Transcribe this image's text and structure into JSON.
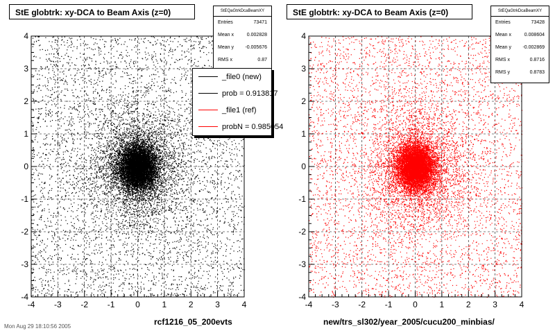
{
  "footer_text": "Mon Aug 29 18:10:56 2005",
  "chart_data": [
    {
      "type": "scatter",
      "title": "StE globtrk: xy-DCA to Beam Axis (z=0)",
      "xlabel": "rcf1216_05_200evts",
      "ylabel": "",
      "xlim": [
        -4,
        4
      ],
      "ylim": [
        -4,
        4
      ],
      "xticks": [
        "-4",
        "-3",
        "-2",
        "-1",
        "0",
        "1",
        "2",
        "3",
        "4"
      ],
      "yticks": [
        "-4",
        "-3",
        "-2",
        "-1",
        "0",
        "1",
        "2",
        "3",
        "4"
      ],
      "grid": true,
      "marker_color": "#000000",
      "stats": {
        "name": "StEQaGtrkDcaBeamXY",
        "rows": [
          {
            "label": "Entries",
            "value": "73471"
          },
          {
            "label": "Mean x",
            "value": "0.002828"
          },
          {
            "label": "Mean y",
            "value": "-0.005676"
          },
          {
            "label": "RMS x",
            "value": "0.87"
          }
        ]
      },
      "legend": {
        "placement": "top-right",
        "entries": [
          {
            "text": "_file0 (new)",
            "color": "#000000"
          },
          {
            "text": "prob = 0.913817",
            "color": "#000000"
          },
          {
            "text": "_file1 (ref)",
            "color": "#ff0000"
          },
          {
            "text": "probN = 0.985054",
            "color": "#ff0000"
          }
        ]
      },
      "distribution": {
        "entries": 73471,
        "mean_x": 0.002828,
        "mean_y": -0.005676,
        "rms_x": 0.87
      }
    },
    {
      "type": "scatter",
      "title": "StE globtrk: xy-DCA to Beam Axis (z=0)",
      "xlabel": "new/trs_sl302/year_2005/cucu200_minbias/",
      "ylabel": "",
      "xlim": [
        -4,
        4
      ],
      "ylim": [
        -4,
        4
      ],
      "xticks": [
        "-4",
        "-3",
        "-2",
        "-1",
        "0",
        "1",
        "2",
        "3",
        "4"
      ],
      "yticks": [
        "-4",
        "-3",
        "-2",
        "-1",
        "0",
        "1",
        "2",
        "3",
        "4"
      ],
      "grid": true,
      "marker_color": "#ff0000",
      "stats": {
        "name": "StEQaGtrkDcaBeamXY",
        "rows": [
          {
            "label": "Entries",
            "value": "73428"
          },
          {
            "label": "Mean x",
            "value": "0.008604"
          },
          {
            "label": "Mean y",
            "value": "-0.002869"
          },
          {
            "label": "RMS x",
            "value": "0.8716"
          },
          {
            "label": "RMS y",
            "value": "0.8783"
          }
        ]
      },
      "distribution": {
        "entries": 73428,
        "mean_x": 0.008604,
        "mean_y": -0.002869,
        "rms_x": 0.8716,
        "rms_y": 0.8783
      }
    }
  ]
}
